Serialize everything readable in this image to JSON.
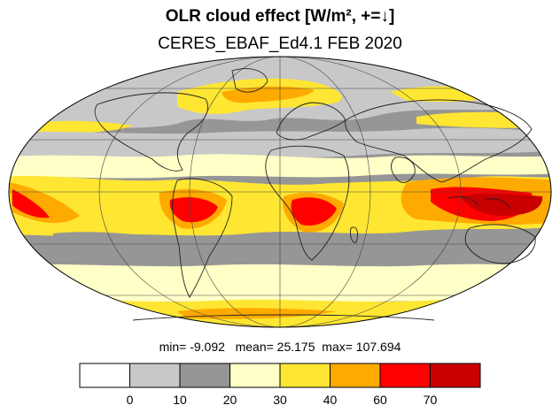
{
  "title": "OLR cloud effect [W/m², +=↓]",
  "subtitle": "CERES_EBAF_Ed4.1 FEB 2020",
  "stats": {
    "min_label": "min=",
    "min": "-9.092",
    "mean_label": "mean=",
    "mean": "25.175",
    "max_label": "max=",
    "max": "107.694"
  },
  "colorbar": {
    "colors": [
      "#ffffff",
      "#c8c8c8",
      "#969696",
      "#ffffc8",
      "#ffe632",
      "#ffaa00",
      "#ff0000",
      "#c80000"
    ],
    "ticks": [
      "0",
      "10",
      "20",
      "30",
      "40",
      "60",
      "70"
    ]
  },
  "legend_colors": {
    "white": "#ffffff",
    "light_gray": "#c8c8c8",
    "gray": "#969696",
    "cream": "#ffffc8",
    "yellow": "#ffe632",
    "orange": "#ffaa00",
    "red": "#ff0000",
    "dark_red": "#c80000"
  }
}
